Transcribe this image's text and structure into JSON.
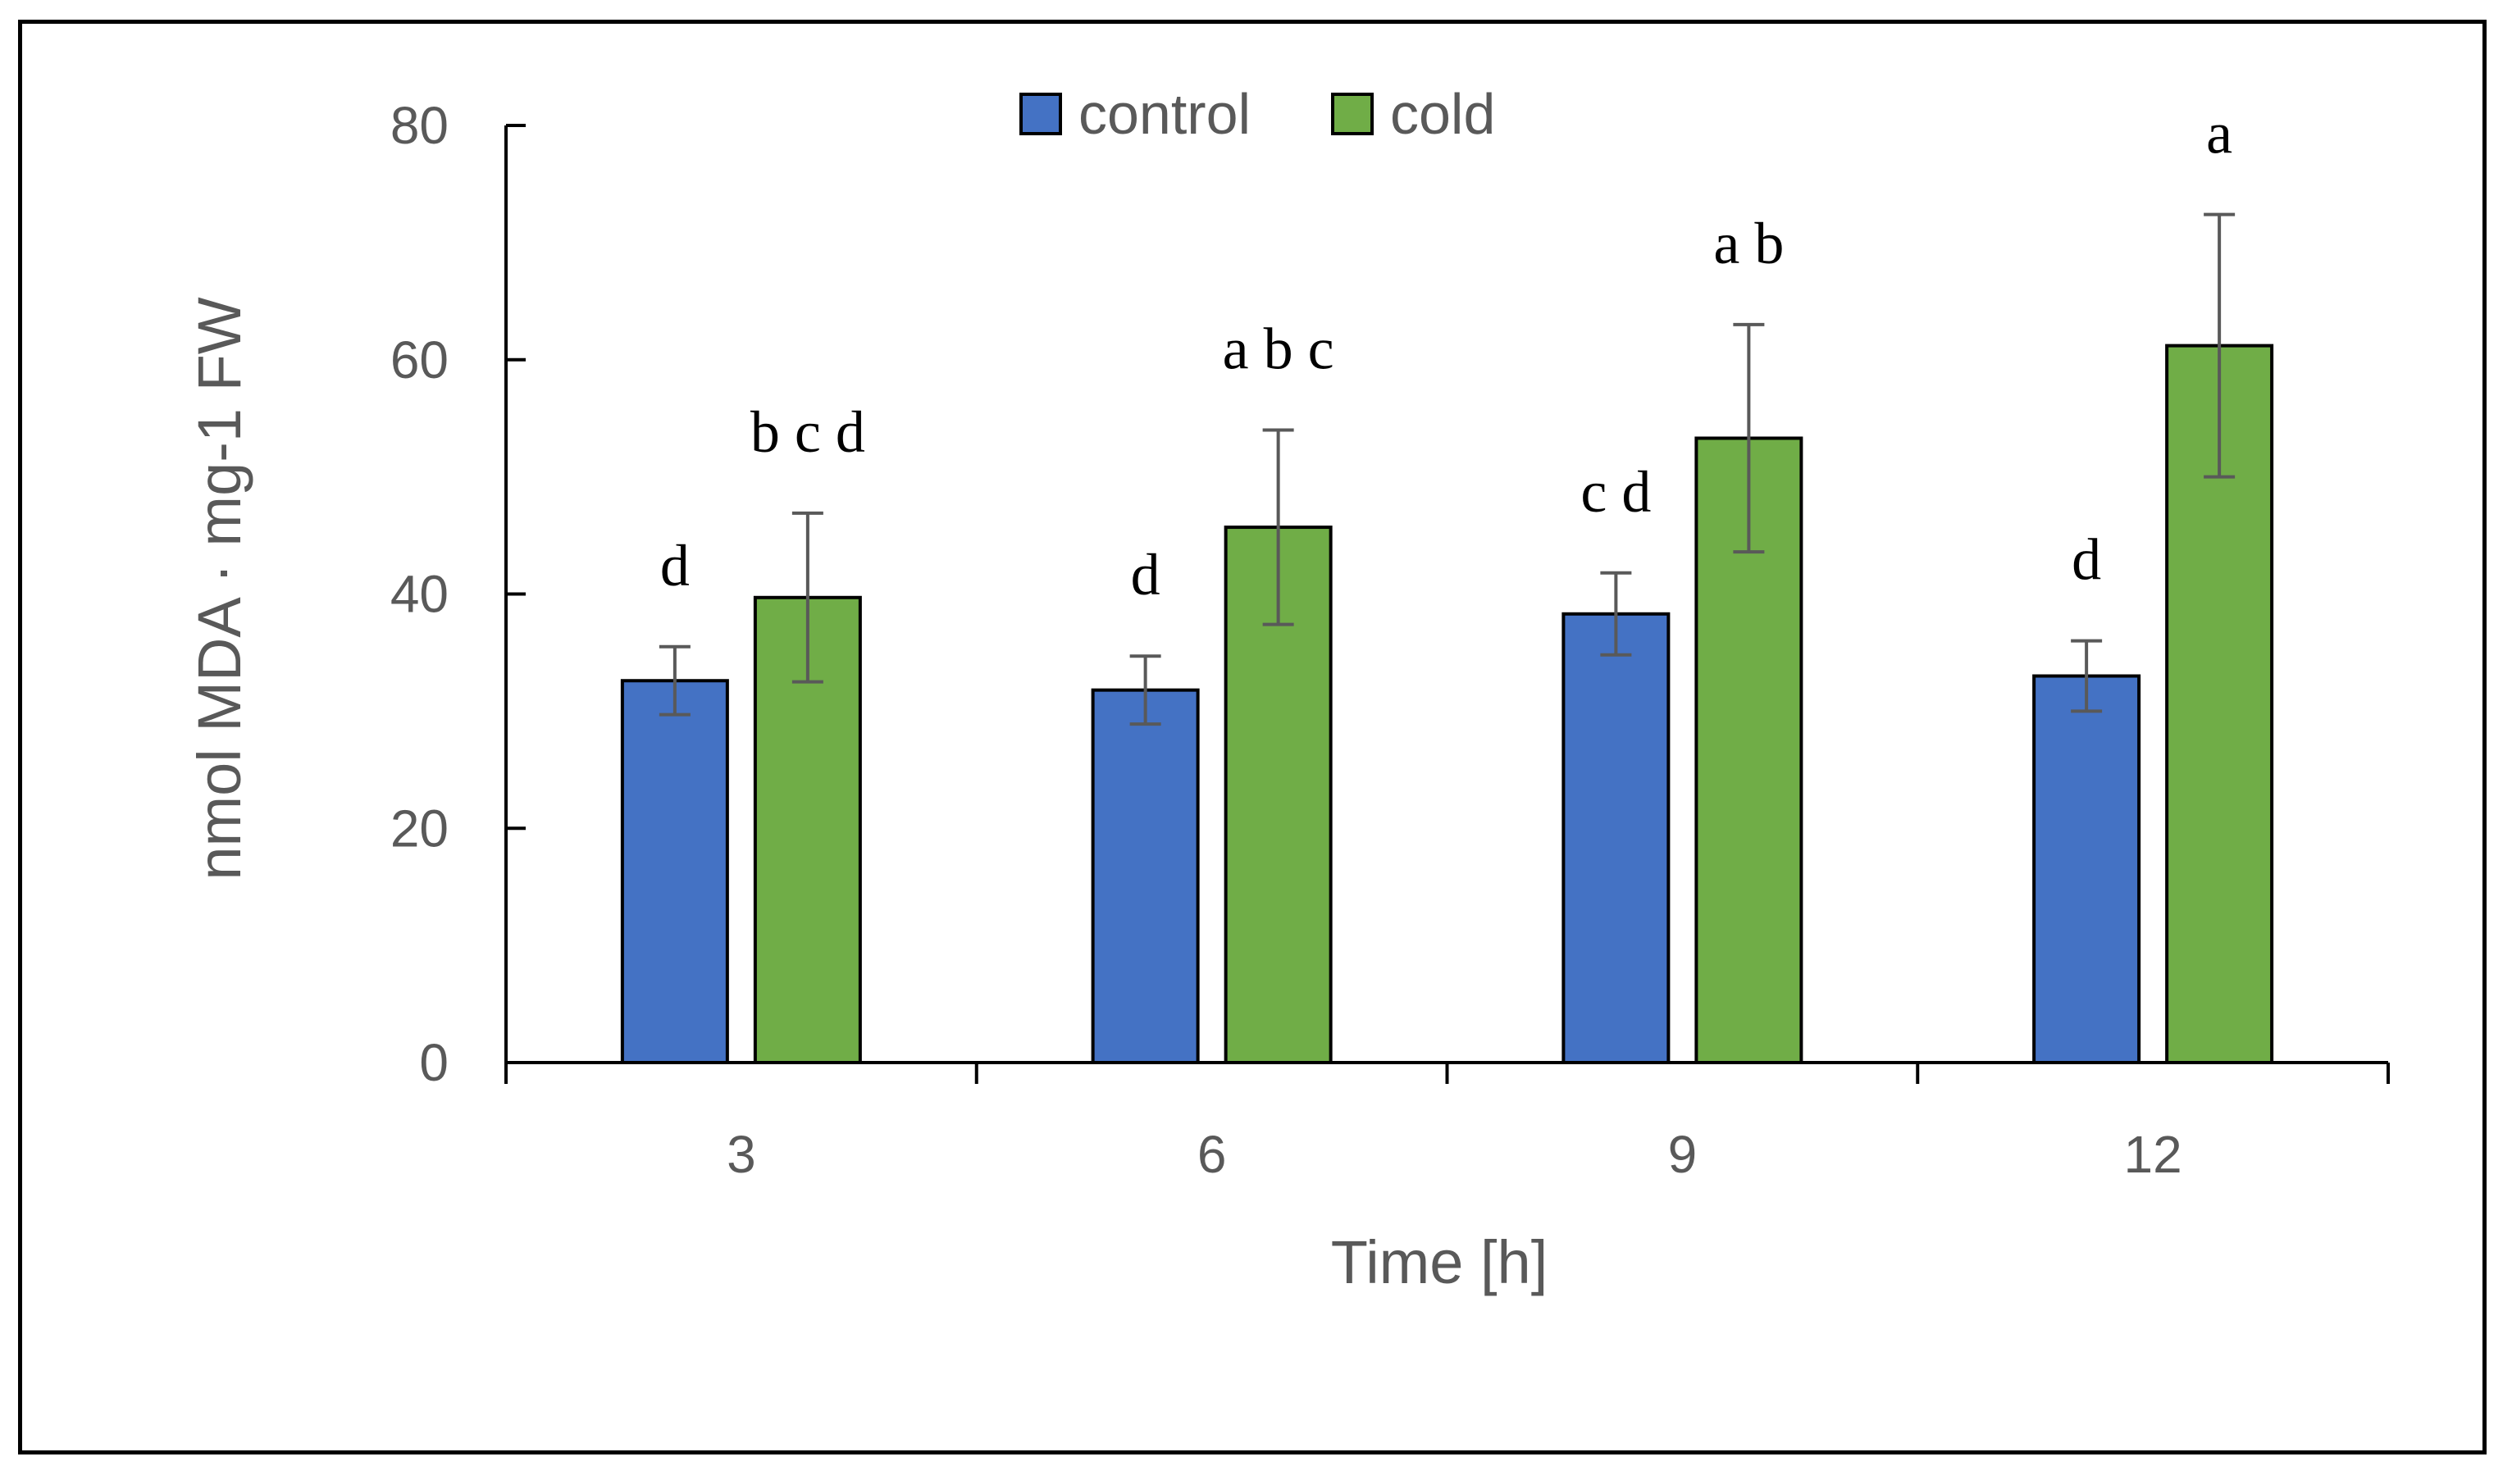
{
  "chart_data": {
    "type": "bar",
    "xlabel": "Time [h]",
    "ylabel": "nmol MDA · mg-1 FW",
    "ylim": [
      0,
      80
    ],
    "yticks": [
      0,
      20,
      40,
      60,
      80
    ],
    "categories": [
      "3",
      "6",
      "9",
      "12"
    ],
    "legend": {
      "placement": "top-center"
    },
    "grid": false,
    "series": [
      {
        "name": "control",
        "color": "#4472C4",
        "values": [
          32.6,
          31.8,
          38.3,
          33.0
        ],
        "errors": [
          2.9,
          2.9,
          3.5,
          3.0
        ],
        "labels": [
          "d",
          "d",
          "c d",
          "d"
        ]
      },
      {
        "name": "cold",
        "color": "#70AD47",
        "values": [
          39.7,
          45.7,
          53.3,
          61.2
        ],
        "errors": [
          7.2,
          8.3,
          9.7,
          11.2
        ],
        "labels": [
          "b c d",
          "a b c",
          "a b",
          "a"
        ]
      }
    ]
  }
}
